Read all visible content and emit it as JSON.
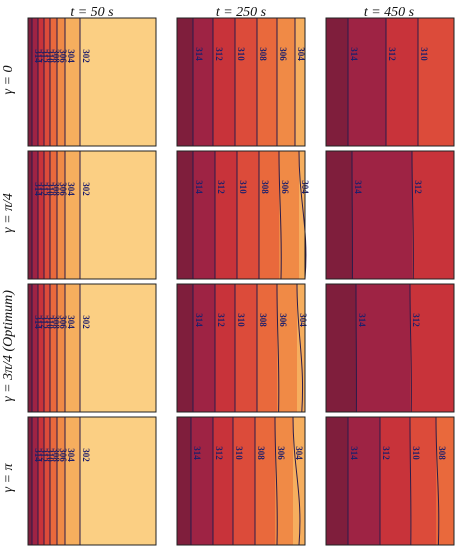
{
  "column_titles": [
    "t = 50 s",
    "t = 250 s",
    "t = 450 s"
  ],
  "row_labels": [
    "γ = 0",
    "γ = π/4",
    "γ = 3π/4 (Optimum)",
    "γ = π"
  ],
  "colors": {
    "314": "#9e2344",
    "312": "#c8333a",
    "310": "#dc4b3a",
    "308": "#e9693c",
    "306": "#f08a46",
    "304": "#f6ae5e",
    "302": "#fbcf83",
    "300": "#fbe9b0",
    "line": "#2b1b4a",
    "label": "#1f1f6b"
  },
  "panels": [
    [
      {
        "contours": [
          {
            "level": "314",
            "label": "314"
          },
          {
            "level": "312",
            "label": "312"
          },
          {
            "level": "310",
            "label": "310"
          },
          {
            "level": "308",
            "label": "308"
          },
          {
            "level": "306",
            "label": "306"
          },
          {
            "level": "304",
            "label": "304"
          },
          {
            "level": "302",
            "label": "302"
          }
        ]
      },
      {
        "contours": [
          {
            "level": "314",
            "label": "314"
          },
          {
            "level": "312",
            "label": "312"
          },
          {
            "level": "310",
            "label": "310"
          },
          {
            "level": "308",
            "label": "308"
          },
          {
            "level": "306",
            "label": "306"
          },
          {
            "level": "304",
            "label": "304"
          }
        ]
      },
      {
        "contours": [
          {
            "level": "314",
            "label": "314"
          },
          {
            "level": "312",
            "label": "312"
          },
          {
            "level": "310",
            "label": "310"
          }
        ]
      }
    ],
    [
      {
        "contours": [
          {
            "level": "314",
            "label": "314"
          },
          {
            "level": "312",
            "label": "312"
          },
          {
            "level": "310",
            "label": "310"
          },
          {
            "level": "308",
            "label": "308"
          },
          {
            "level": "306",
            "label": "306"
          },
          {
            "level": "304",
            "label": "304"
          },
          {
            "level": "302",
            "label": "302"
          }
        ]
      },
      {
        "contours": [
          {
            "level": "314",
            "label": "314"
          },
          {
            "level": "312",
            "label": "312"
          },
          {
            "level": "310",
            "label": "310"
          },
          {
            "level": "308",
            "label": "308"
          },
          {
            "level": "306",
            "label": "306"
          },
          {
            "level": "304",
            "label": "304"
          }
        ]
      },
      {
        "contours": [
          {
            "level": "314",
            "label": "314"
          },
          {
            "level": "312",
            "label": "312"
          }
        ]
      }
    ],
    [
      {
        "contours": [
          {
            "level": "314",
            "label": "314"
          },
          {
            "level": "312",
            "label": "312"
          },
          {
            "level": "310",
            "label": "310"
          },
          {
            "level": "308",
            "label": "308"
          },
          {
            "level": "306",
            "label": "306"
          },
          {
            "level": "304",
            "label": "304"
          },
          {
            "level": "302",
            "label": "302"
          }
        ]
      },
      {
        "contours": [
          {
            "level": "314",
            "label": "314"
          },
          {
            "level": "312",
            "label": "312"
          },
          {
            "level": "310",
            "label": "310"
          },
          {
            "level": "308",
            "label": "308"
          },
          {
            "level": "306",
            "label": "306"
          },
          {
            "level": "304",
            "label": "304"
          }
        ]
      },
      {
        "contours": [
          {
            "level": "314",
            "label": "314"
          },
          {
            "level": "312",
            "label": "312"
          }
        ]
      }
    ],
    [
      {
        "contours": [
          {
            "level": "314",
            "label": "314"
          },
          {
            "level": "312",
            "label": "312"
          },
          {
            "level": "310",
            "label": "310"
          },
          {
            "level": "308",
            "label": "308"
          },
          {
            "level": "306",
            "label": "306"
          },
          {
            "level": "304",
            "label": "304"
          },
          {
            "level": "302",
            "label": "302"
          }
        ]
      },
      {
        "contours": [
          {
            "level": "314",
            "label": "314"
          },
          {
            "level": "312",
            "label": "312"
          },
          {
            "level": "310",
            "label": "310"
          },
          {
            "level": "308",
            "label": "308"
          },
          {
            "level": "306",
            "label": "306"
          },
          {
            "level": "304",
            "label": "304"
          }
        ]
      },
      {
        "contours": [
          {
            "level": "314",
            "label": "314"
          },
          {
            "level": "312",
            "label": "312"
          },
          {
            "level": "310",
            "label": "310"
          },
          {
            "level": "308",
            "label": "308"
          }
        ]
      }
    ]
  ]
}
